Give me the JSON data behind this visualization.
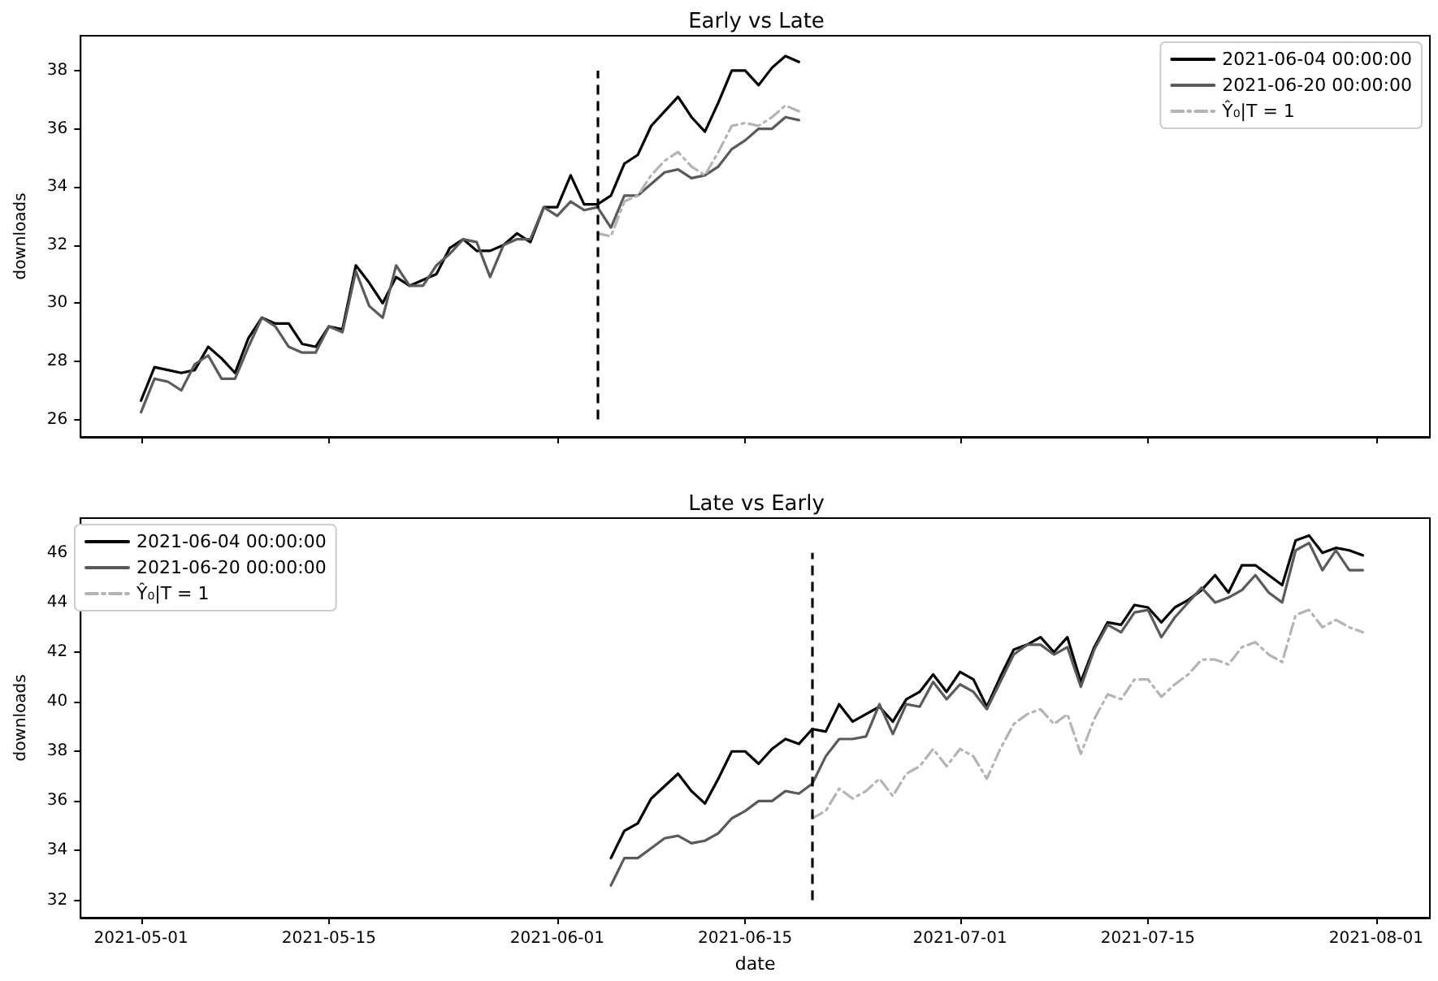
{
  "chart_data": [
    {
      "type": "line",
      "title": "Early vs Late",
      "ylabel": "downloads",
      "legend": "top right",
      "grid": false,
      "marker": "none",
      "tick_labels": "y",
      "xlim": [
        "2021-04-26T12:00",
        "2021-08-05"
      ],
      "xticks": [
        "2021-05-01",
        "2021-05-15",
        "2021-06-01",
        "2021-06-15",
        "2021-07-01",
        "2021-07-15",
        "2021-08-01"
      ],
      "ylim": [
        25.4,
        39.2
      ],
      "yticks": [
        26,
        28,
        30,
        32,
        34,
        36,
        38
      ],
      "ref_lines": [
        {
          "axis": "x",
          "value": "2021-06-04",
          "color": "#000000",
          "line_style": "dashed"
        }
      ],
      "series": [
        {
          "name": "2021-06-04 00:00:00",
          "color": "#000000",
          "line_style": "solid",
          "x": [
            "2021-05-01",
            "2021-05-02",
            "2021-05-03",
            "2021-05-04",
            "2021-05-05",
            "2021-05-06",
            "2021-05-07",
            "2021-05-08",
            "2021-05-09",
            "2021-05-10",
            "2021-05-11",
            "2021-05-12",
            "2021-05-13",
            "2021-05-14",
            "2021-05-15",
            "2021-05-16",
            "2021-05-17",
            "2021-05-18",
            "2021-05-19",
            "2021-05-20",
            "2021-05-21",
            "2021-05-22",
            "2021-05-23",
            "2021-05-24",
            "2021-05-25",
            "2021-05-26",
            "2021-05-27",
            "2021-05-28",
            "2021-05-29",
            "2021-05-30",
            "2021-05-31",
            "2021-06-01",
            "2021-06-02",
            "2021-06-03",
            "2021-06-04",
            "2021-06-05",
            "2021-06-06",
            "2021-06-07",
            "2021-06-08",
            "2021-06-09",
            "2021-06-10",
            "2021-06-11",
            "2021-06-12",
            "2021-06-13",
            "2021-06-14",
            "2021-06-15",
            "2021-06-16",
            "2021-06-17",
            "2021-06-18",
            "2021-06-19"
          ],
          "values": [
            26.65,
            27.8,
            27.7,
            27.6,
            27.7,
            28.5,
            28.1,
            27.6,
            28.8,
            29.5,
            29.3,
            29.3,
            28.6,
            28.5,
            29.2,
            29.1,
            31.3,
            30.7,
            30.0,
            30.9,
            30.6,
            30.8,
            31.0,
            31.9,
            32.2,
            31.8,
            31.8,
            32.0,
            32.4,
            32.1,
            33.3,
            33.3,
            34.4,
            33.4,
            33.4,
            33.7,
            34.8,
            35.1,
            36.1,
            36.6,
            37.1,
            36.4,
            35.9,
            36.9,
            38.0,
            38.0,
            37.5,
            38.1,
            38.5,
            38.3
          ]
        },
        {
          "name": "2021-06-20 00:00:00",
          "color": "#5a5a5a",
          "line_style": "solid",
          "x": [
            "2021-05-01",
            "2021-05-02",
            "2021-05-03",
            "2021-05-04",
            "2021-05-05",
            "2021-05-06",
            "2021-05-07",
            "2021-05-08",
            "2021-05-09",
            "2021-05-10",
            "2021-05-11",
            "2021-05-12",
            "2021-05-13",
            "2021-05-14",
            "2021-05-15",
            "2021-05-16",
            "2021-05-17",
            "2021-05-18",
            "2021-05-19",
            "2021-05-20",
            "2021-05-21",
            "2021-05-22",
            "2021-05-23",
            "2021-05-24",
            "2021-05-25",
            "2021-05-26",
            "2021-05-27",
            "2021-05-28",
            "2021-05-29",
            "2021-05-30",
            "2021-05-31",
            "2021-06-01",
            "2021-06-02",
            "2021-06-03",
            "2021-06-04",
            "2021-06-05",
            "2021-06-06",
            "2021-06-07",
            "2021-06-08",
            "2021-06-09",
            "2021-06-10",
            "2021-06-11",
            "2021-06-12",
            "2021-06-13",
            "2021-06-14",
            "2021-06-15",
            "2021-06-16",
            "2021-06-17",
            "2021-06-18",
            "2021-06-19"
          ],
          "values": [
            26.25,
            27.4,
            27.3,
            27.0,
            27.9,
            28.2,
            27.4,
            27.4,
            28.5,
            29.5,
            29.2,
            28.5,
            28.3,
            28.3,
            29.2,
            29.0,
            31.1,
            29.9,
            29.5,
            31.3,
            30.6,
            30.6,
            31.3,
            31.7,
            32.2,
            32.1,
            30.9,
            32.0,
            32.2,
            32.2,
            33.3,
            33.0,
            33.5,
            33.2,
            33.3,
            32.6,
            33.7,
            33.7,
            34.1,
            34.5,
            34.6,
            34.3,
            34.4,
            34.7,
            35.3,
            35.6,
            36.0,
            36.0,
            36.4,
            36.3
          ]
        },
        {
          "name": "Ŷ₀|T = 1",
          "color": "#b4b4b4",
          "line_style": "dashed",
          "x": [
            "2021-06-04",
            "2021-06-05",
            "2021-06-06",
            "2021-06-07",
            "2021-06-08",
            "2021-06-09",
            "2021-06-10",
            "2021-06-11",
            "2021-06-12",
            "2021-06-13",
            "2021-06-14",
            "2021-06-15",
            "2021-06-16",
            "2021-06-17",
            "2021-06-18",
            "2021-06-19"
          ],
          "values": [
            32.4,
            32.3,
            33.5,
            33.7,
            34.4,
            34.9,
            35.2,
            34.7,
            34.4,
            35.2,
            36.1,
            36.2,
            36.1,
            36.4,
            36.8,
            36.6
          ]
        }
      ]
    },
    {
      "type": "line",
      "title": "Late vs Early",
      "xlabel": "date",
      "ylabel": "downloads",
      "legend": "top left",
      "grid": false,
      "marker": "none",
      "xlim": [
        "2021-04-26T12:00",
        "2021-08-05"
      ],
      "xticks": [
        "2021-05-01",
        "2021-05-15",
        "2021-06-01",
        "2021-06-15",
        "2021-07-01",
        "2021-07-15",
        "2021-08-01"
      ],
      "ylim": [
        31.3,
        47.4
      ],
      "yticks": [
        32,
        34,
        36,
        38,
        40,
        42,
        44,
        46
      ],
      "ref_lines": [
        {
          "axis": "x",
          "value": "2021-06-20",
          "color": "#000000",
          "line_style": "dashed"
        }
      ],
      "series": [
        {
          "name": "2021-06-04 00:00:00",
          "color": "#000000",
          "line_style": "solid",
          "x": [
            "2021-06-05",
            "2021-06-06",
            "2021-06-07",
            "2021-06-08",
            "2021-06-09",
            "2021-06-10",
            "2021-06-11",
            "2021-06-12",
            "2021-06-13",
            "2021-06-14",
            "2021-06-15",
            "2021-06-16",
            "2021-06-17",
            "2021-06-18",
            "2021-06-19",
            "2021-06-20",
            "2021-06-21",
            "2021-06-22",
            "2021-06-23",
            "2021-06-24",
            "2021-06-25",
            "2021-06-26",
            "2021-06-27",
            "2021-06-28",
            "2021-06-29",
            "2021-06-30",
            "2021-07-01",
            "2021-07-02",
            "2021-07-03",
            "2021-07-04",
            "2021-07-05",
            "2021-07-06",
            "2021-07-07",
            "2021-07-08",
            "2021-07-09",
            "2021-07-10",
            "2021-07-11",
            "2021-07-12",
            "2021-07-13",
            "2021-07-14",
            "2021-07-15",
            "2021-07-16",
            "2021-07-17",
            "2021-07-18",
            "2021-07-19",
            "2021-07-20",
            "2021-07-21",
            "2021-07-22",
            "2021-07-23",
            "2021-07-24",
            "2021-07-25",
            "2021-07-26",
            "2021-07-27",
            "2021-07-28",
            "2021-07-29",
            "2021-07-30",
            "2021-07-31"
          ],
          "values": [
            33.7,
            34.8,
            35.1,
            36.1,
            36.6,
            37.1,
            36.4,
            35.9,
            36.9,
            38.0,
            38.0,
            37.5,
            38.1,
            38.5,
            38.3,
            38.9,
            38.8,
            39.9,
            39.2,
            39.5,
            39.8,
            39.2,
            40.1,
            40.4,
            41.1,
            40.4,
            41.2,
            40.9,
            39.8,
            41.0,
            42.1,
            42.3,
            42.6,
            42.0,
            42.6,
            40.8,
            42.2,
            43.2,
            43.1,
            43.9,
            43.8,
            43.2,
            43.8,
            44.1,
            44.5,
            45.1,
            44.4,
            45.5,
            45.5,
            45.1,
            44.7,
            46.5,
            46.7,
            46.0,
            46.2,
            46.1,
            45.9
          ]
        },
        {
          "name": "2021-06-20 00:00:00",
          "color": "#5a5a5a",
          "line_style": "solid",
          "x": [
            "2021-06-05",
            "2021-06-06",
            "2021-06-07",
            "2021-06-08",
            "2021-06-09",
            "2021-06-10",
            "2021-06-11",
            "2021-06-12",
            "2021-06-13",
            "2021-06-14",
            "2021-06-15",
            "2021-06-16",
            "2021-06-17",
            "2021-06-18",
            "2021-06-19",
            "2021-06-20",
            "2021-06-21",
            "2021-06-22",
            "2021-06-23",
            "2021-06-24",
            "2021-06-25",
            "2021-06-26",
            "2021-06-27",
            "2021-06-28",
            "2021-06-29",
            "2021-06-30",
            "2021-07-01",
            "2021-07-02",
            "2021-07-03",
            "2021-07-04",
            "2021-07-05",
            "2021-07-06",
            "2021-07-07",
            "2021-07-08",
            "2021-07-09",
            "2021-07-10",
            "2021-07-11",
            "2021-07-12",
            "2021-07-13",
            "2021-07-14",
            "2021-07-15",
            "2021-07-16",
            "2021-07-17",
            "2021-07-18",
            "2021-07-19",
            "2021-07-20",
            "2021-07-21",
            "2021-07-22",
            "2021-07-23",
            "2021-07-24",
            "2021-07-25",
            "2021-07-26",
            "2021-07-27",
            "2021-07-28",
            "2021-07-29",
            "2021-07-30",
            "2021-07-31"
          ],
          "values": [
            32.6,
            33.7,
            33.7,
            34.1,
            34.5,
            34.6,
            34.3,
            34.4,
            34.7,
            35.3,
            35.6,
            36.0,
            36.0,
            36.4,
            36.3,
            36.7,
            37.8,
            38.5,
            38.5,
            38.6,
            39.9,
            38.7,
            39.9,
            39.8,
            40.8,
            40.1,
            40.7,
            40.4,
            39.7,
            40.8,
            41.9,
            42.3,
            42.3,
            41.9,
            42.2,
            40.6,
            42.1,
            43.1,
            42.8,
            43.6,
            43.7,
            42.6,
            43.4,
            44.0,
            44.6,
            44.0,
            44.2,
            44.5,
            45.1,
            44.4,
            44.0,
            46.1,
            46.4,
            45.3,
            46.1,
            45.3,
            45.3
          ]
        },
        {
          "name": "Ŷ₀|T = 1",
          "color": "#b4b4b4",
          "line_style": "dashed",
          "x": [
            "2021-06-20",
            "2021-06-21",
            "2021-06-22",
            "2021-06-23",
            "2021-06-24",
            "2021-06-25",
            "2021-06-26",
            "2021-06-27",
            "2021-06-28",
            "2021-06-29",
            "2021-06-30",
            "2021-07-01",
            "2021-07-02",
            "2021-07-03",
            "2021-07-04",
            "2021-07-05",
            "2021-07-06",
            "2021-07-07",
            "2021-07-08",
            "2021-07-09",
            "2021-07-10",
            "2021-07-11",
            "2021-07-12",
            "2021-07-13",
            "2021-07-14",
            "2021-07-15",
            "2021-07-16",
            "2021-07-17",
            "2021-07-18",
            "2021-07-19",
            "2021-07-20",
            "2021-07-21",
            "2021-07-22",
            "2021-07-23",
            "2021-07-24",
            "2021-07-25",
            "2021-07-26",
            "2021-07-27",
            "2021-07-28",
            "2021-07-29",
            "2021-07-30",
            "2021-07-31"
          ],
          "values": [
            35.3,
            35.6,
            36.5,
            36.1,
            36.4,
            36.9,
            36.2,
            37.1,
            37.4,
            38.1,
            37.4,
            38.1,
            37.8,
            36.9,
            38.1,
            39.1,
            39.5,
            39.7,
            39.1,
            39.5,
            37.9,
            39.3,
            40.3,
            40.1,
            40.9,
            40.9,
            40.2,
            40.7,
            41.1,
            41.7,
            41.7,
            41.5,
            42.2,
            42.4,
            41.9,
            41.6,
            43.5,
            43.7,
            43.0,
            43.3,
            43.0,
            42.8
          ]
        }
      ]
    }
  ]
}
